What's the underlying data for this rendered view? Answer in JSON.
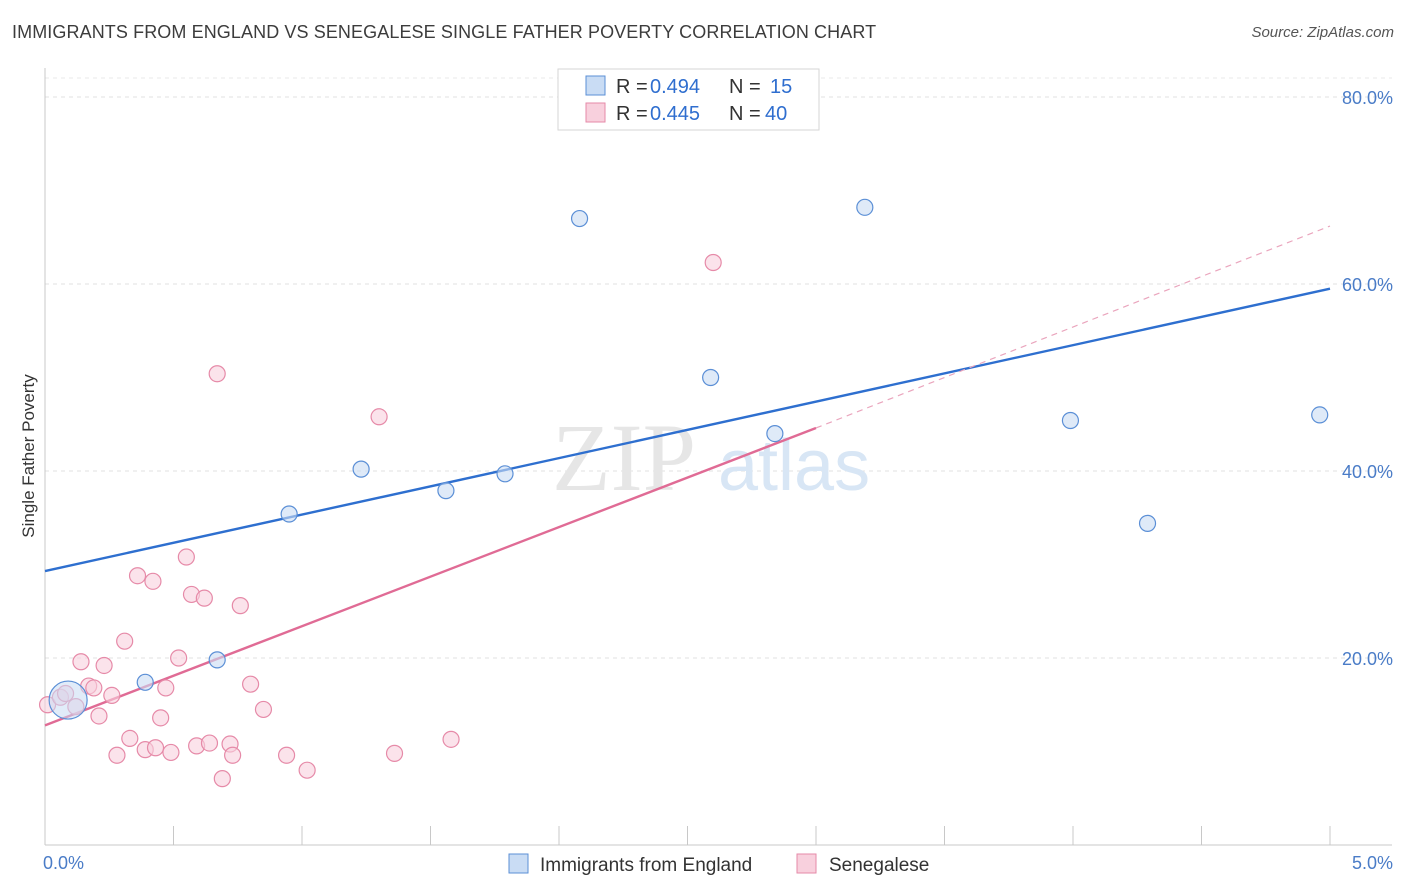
{
  "title": "IMMIGRANTS FROM ENGLAND VS SENEGALESE SINGLE FATHER POVERTY CORRELATION CHART",
  "source": "Source: ZipAtlas.com",
  "watermark": {
    "zip": "ZIP",
    "atlas": "atlas"
  },
  "chart_data": {
    "type": "scatter",
    "xlabel": "",
    "ylabel": "Single Father Poverty",
    "xlim": [
      0,
      5
    ],
    "ylim": [
      0,
      85
    ],
    "x_tick_labels": [
      "0.0%",
      "5.0%"
    ],
    "y_ticks": [
      20,
      40,
      60,
      80
    ],
    "y_tick_labels": [
      "20.0%",
      "40.0%",
      "60.0%",
      "80.0%"
    ],
    "grid": true,
    "legend_position": "top-center",
    "legend": [
      {
        "r_label": "R = ",
        "r_value": "0.494",
        "n_label": "N = ",
        "n_value": "15"
      },
      {
        "r_label": "R = ",
        "r_value": "0.445",
        "n_label": "N = ",
        "n_value": "40"
      }
    ],
    "series": [
      {
        "name": "Immigrants from England",
        "color": "#5b8fd6",
        "fill": "#c9dcf4",
        "line_color": "#2e6fcf",
        "trend": {
          "x0": 0,
          "y0": 29.3,
          "x1": 5,
          "y1": 59.5
        },
        "points": [
          {
            "x": 0.09,
            "y": 15.5,
            "big": true
          },
          {
            "x": 0.39,
            "y": 17.4
          },
          {
            "x": 0.67,
            "y": 19.8
          },
          {
            "x": 0.95,
            "y": 35.4
          },
          {
            "x": 1.23,
            "y": 40.2
          },
          {
            "x": 1.56,
            "y": 37.9
          },
          {
            "x": 1.79,
            "y": 39.7
          },
          {
            "x": 2.08,
            "y": 67.0
          },
          {
            "x": 2.59,
            "y": 50.0
          },
          {
            "x": 2.84,
            "y": 44.0
          },
          {
            "x": 3.19,
            "y": 68.2
          },
          {
            "x": 3.99,
            "y": 45.4
          },
          {
            "x": 4.29,
            "y": 34.4
          },
          {
            "x": 4.96,
            "y": 46.0
          }
        ]
      },
      {
        "name": "Senegalese",
        "color": "#e68aa8",
        "fill": "#f8d0dd",
        "line_color": "#e06b95",
        "trend": {
          "x0": 0,
          "y0": 12.8,
          "x1": 3.0,
          "y1": 44.6
        },
        "trend_dashed": {
          "x0": 3.0,
          "y0": 44.6,
          "x1": 5,
          "y1": 66.2
        },
        "points": [
          {
            "x": 0.01,
            "y": 15.0
          },
          {
            "x": 0.06,
            "y": 15.8
          },
          {
            "x": 0.08,
            "y": 16.2
          },
          {
            "x": 0.12,
            "y": 14.8
          },
          {
            "x": 0.14,
            "y": 19.6
          },
          {
            "x": 0.17,
            "y": 17.0
          },
          {
            "x": 0.19,
            "y": 16.8
          },
          {
            "x": 0.21,
            "y": 13.8
          },
          {
            "x": 0.23,
            "y": 19.2
          },
          {
            "x": 0.26,
            "y": 16.0
          },
          {
            "x": 0.28,
            "y": 9.6
          },
          {
            "x": 0.31,
            "y": 21.8
          },
          {
            "x": 0.33,
            "y": 11.4
          },
          {
            "x": 0.36,
            "y": 28.8
          },
          {
            "x": 0.39,
            "y": 10.2
          },
          {
            "x": 0.42,
            "y": 28.2
          },
          {
            "x": 0.43,
            "y": 10.4
          },
          {
            "x": 0.45,
            "y": 13.6
          },
          {
            "x": 0.47,
            "y": 16.8
          },
          {
            "x": 0.49,
            "y": 9.9
          },
          {
            "x": 0.52,
            "y": 20.0
          },
          {
            "x": 0.55,
            "y": 30.8
          },
          {
            "x": 0.57,
            "y": 26.8
          },
          {
            "x": 0.59,
            "y": 10.6
          },
          {
            "x": 0.62,
            "y": 26.4
          },
          {
            "x": 0.64,
            "y": 10.9
          },
          {
            "x": 0.67,
            "y": 50.4
          },
          {
            "x": 0.69,
            "y": 7.1
          },
          {
            "x": 0.72,
            "y": 10.8
          },
          {
            "x": 0.73,
            "y": 9.6
          },
          {
            "x": 0.76,
            "y": 25.6
          },
          {
            "x": 0.8,
            "y": 17.2
          },
          {
            "x": 0.85,
            "y": 14.5
          },
          {
            "x": 0.94,
            "y": 9.6
          },
          {
            "x": 1.02,
            "y": 8.0
          },
          {
            "x": 1.3,
            "y": 45.8
          },
          {
            "x": 1.36,
            "y": 9.8
          },
          {
            "x": 1.58,
            "y": 11.3
          },
          {
            "x": 2.6,
            "y": 62.3
          }
        ]
      }
    ]
  }
}
